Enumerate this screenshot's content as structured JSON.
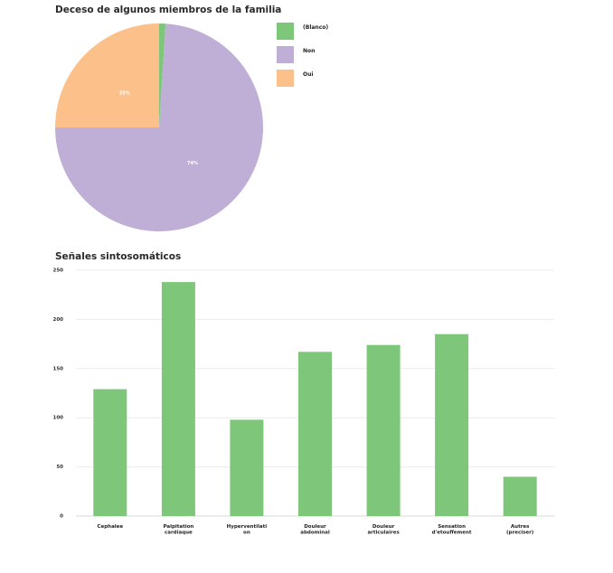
{
  "chart_data": [
    {
      "type": "pie",
      "title": "Deceso de algunos miembros de la familia",
      "slices": [
        {
          "label": "(Blanco)",
          "value": 1,
          "color": "#7dc67a",
          "data_label": ""
        },
        {
          "label": "Non",
          "value": 74,
          "color": "#bfafd6",
          "data_label": "74%"
        },
        {
          "label": "Oui",
          "value": 25,
          "color": "#fcc18a",
          "data_label": "25%"
        }
      ],
      "legend_position": "right"
    },
    {
      "type": "bar",
      "title": "Señales sintosomáticos",
      "categories": [
        "Cephalee",
        "Palpitation cardiaque",
        "Hyperventilati on",
        "Douleur abdominal",
        "Douleur articulaires",
        "Sensation d'etouffement",
        "Autres (preciser)"
      ],
      "category_lines": [
        [
          "Cephalee"
        ],
        [
          "Palpitation",
          "cardiaque"
        ],
        [
          "Hyperventilati",
          "on"
        ],
        [
          "Douleur",
          "abdominal"
        ],
        [
          "Douleur",
          "articulaires"
        ],
        [
          "Sensation",
          "d'etouffement"
        ],
        [
          "Autres",
          "(preciser)"
        ]
      ],
      "values": [
        129,
        238,
        98,
        167,
        174,
        185,
        40
      ],
      "ylim": [
        0,
        250
      ],
      "yticks": [
        0,
        50,
        100,
        150,
        200,
        250
      ],
      "color": "#7dc67a",
      "grid": true
    }
  ]
}
